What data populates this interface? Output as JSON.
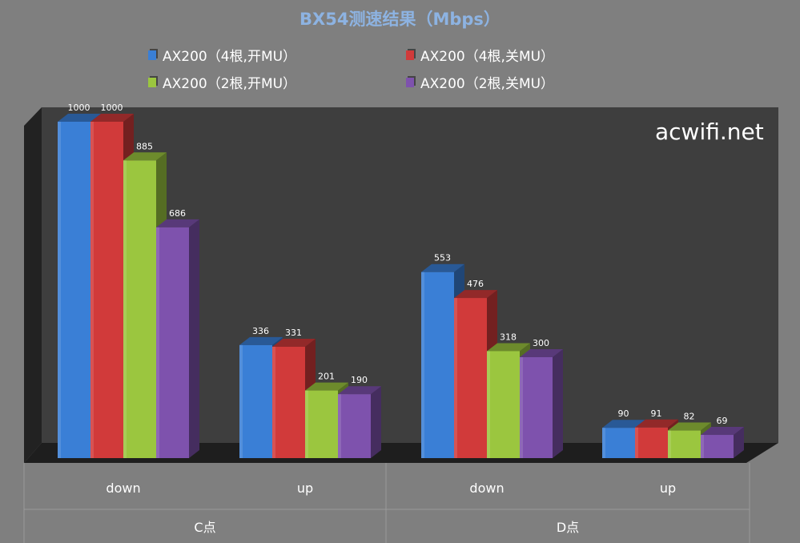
{
  "chart_data": {
    "type": "bar",
    "title": "BX54测速结果（Mbps）",
    "categories": [
      "down",
      "up",
      "down",
      "up"
    ],
    "groups": [
      "C点",
      "D点"
    ],
    "ylim": [
      0,
      1000
    ],
    "series": [
      {
        "name": "AX200（4根,开MU）",
        "color": "#3a7fd6",
        "values": [
          1000,
          336,
          553,
          90
        ]
      },
      {
        "name": "AX200（4根,关MU）",
        "color": "#d13a3a",
        "values": [
          1000,
          331,
          476,
          91
        ]
      },
      {
        "name": "AX200（2根,开MU）",
        "color": "#9bc63f",
        "values": [
          885,
          201,
          318,
          82
        ]
      },
      {
        "name": "AX200（2根,关MU）",
        "color": "#7e52ad",
        "values": [
          686,
          190,
          300,
          69
        ]
      }
    ],
    "legend_position": "top",
    "grid": false
  },
  "watermark": "acwifi.net"
}
